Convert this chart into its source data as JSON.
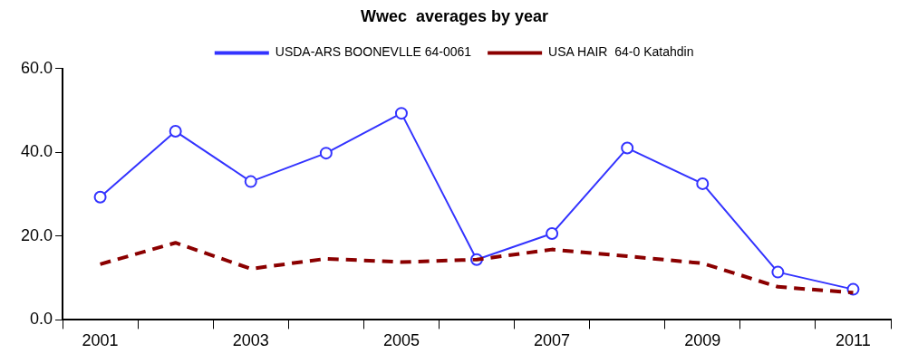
{
  "chart_data": {
    "type": "line",
    "title": "Wwec  averages by year",
    "categories": [
      "2001",
      null,
      "2003",
      null,
      "2005",
      null,
      "2007",
      null,
      "2009",
      null,
      "2011"
    ],
    "series": [
      {
        "name": "USDA-ARS BOONEVLLE 64-0061",
        "color": "#3333ff",
        "marker": "circle",
        "line_style": "solid",
        "values": [
          29.3,
          45,
          33,
          39.8,
          49.3,
          14.4,
          20.6,
          41,
          32.5,
          11.4,
          7.3
        ]
      },
      {
        "name": "USA HAIR  64-0 Katahdin",
        "color": "#8b0000",
        "marker": "none",
        "line_style": "dashed",
        "values": [
          13.3,
          18.4,
          12.2,
          14.6,
          13.8,
          14.4,
          16.8,
          15.2,
          13.5,
          7.9,
          6.5
        ]
      }
    ],
    "ylim": [
      0,
      60
    ],
    "yticks": [
      {
        "value": 0,
        "label": "0.0"
      },
      {
        "value": 20,
        "label": "20.0"
      },
      {
        "value": 40,
        "label": "40.0"
      },
      {
        "value": 60,
        "label": "60.0"
      }
    ],
    "grid": false,
    "legend": "top"
  }
}
